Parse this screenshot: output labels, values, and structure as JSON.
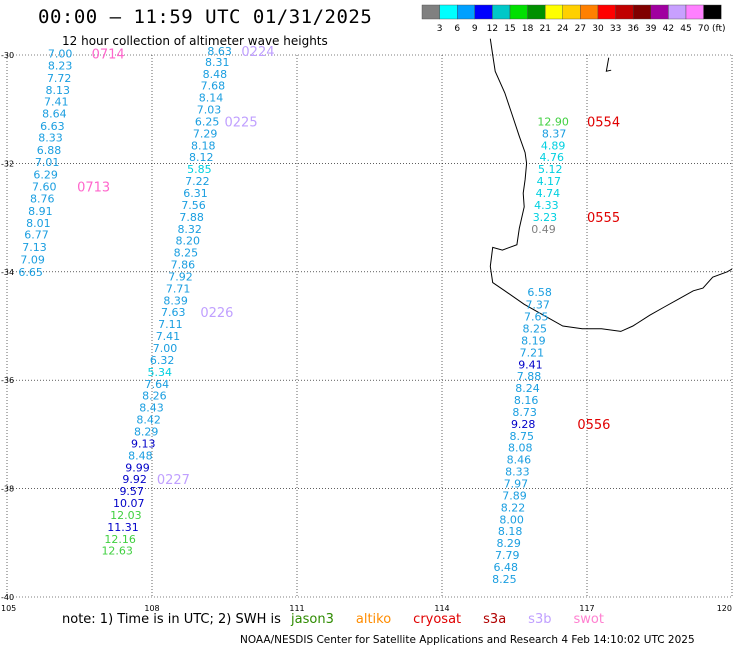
{
  "header": {
    "title": "00:00 – 11:59 UTC 01/31/2025",
    "subtitle": "12 hour collection of altimeter wave heights"
  },
  "colorbar": {
    "unit_label": "(ft)",
    "swatches": [
      {
        "color": "#808080",
        "label": "3"
      },
      {
        "color": "#00ffff",
        "label": "6"
      },
      {
        "color": "#00a0ff",
        "label": "9"
      },
      {
        "color": "#0000ff",
        "label": "12"
      },
      {
        "color": "#00c8c8",
        "label": "15"
      },
      {
        "color": "#00e000",
        "label": "18"
      },
      {
        "color": "#009000",
        "label": "21"
      },
      {
        "color": "#ffff00",
        "label": "24"
      },
      {
        "color": "#ffd000",
        "label": "27"
      },
      {
        "color": "#ff8000",
        "label": "30"
      },
      {
        "color": "#ff0000",
        "label": "33"
      },
      {
        "color": "#c00000",
        "label": "36"
      },
      {
        "color": "#800000",
        "label": "39"
      },
      {
        "color": "#a000a0",
        "label": "42"
      },
      {
        "color": "#c8a0ff",
        "label": "45"
      },
      {
        "color": "#ff80ff",
        "label": "70"
      },
      {
        "color": "#000000",
        "label": ""
      }
    ]
  },
  "map": {
    "lon_ticks": [
      105,
      108,
      111,
      114,
      117,
      120
    ],
    "lat_ticks": [
      -30,
      -32,
      -34,
      -36,
      -38,
      -40
    ],
    "lat_labels": [
      "-30",
      "-32",
      "-34",
      "-36",
      "-38",
      "-40"
    ],
    "lon_labels": [
      "105",
      "108",
      "111",
      "114",
      "117",
      "120"
    ]
  },
  "tracks": [
    {
      "label": "0714",
      "label_color": "#ff66cc",
      "points": [
        {
          "lon": 106.1,
          "lat": -30.05,
          "value": "7.00"
        },
        {
          "lon": 106.1,
          "lat": -30.27,
          "value": "8.23"
        },
        {
          "lon": 106.08,
          "lat": -30.5,
          "value": "7.72"
        },
        {
          "lon": 106.05,
          "lat": -30.72,
          "value": "8.13"
        },
        {
          "lon": 106.02,
          "lat": -30.93,
          "value": "7.41"
        },
        {
          "lon": 105.98,
          "lat": -31.15,
          "value": "8.64"
        },
        {
          "lon": 105.94,
          "lat": -31.38,
          "value": "6.63"
        },
        {
          "lon": 105.9,
          "lat": -31.6,
          "value": "8.33"
        },
        {
          "lon": 105.87,
          "lat": -31.83,
          "value": "6.88"
        },
        {
          "lon": 105.83,
          "lat": -32.05,
          "value": "7.01"
        },
        {
          "lon": 105.8,
          "lat": -32.28,
          "value": "6.29"
        },
        {
          "lon": 105.77,
          "lat": -32.5,
          "value": "7.60"
        },
        {
          "lon": 105.73,
          "lat": -32.72,
          "value": "8.76"
        },
        {
          "lon": 105.69,
          "lat": -32.95,
          "value": "8.91"
        },
        {
          "lon": 105.65,
          "lat": -33.17,
          "value": "8.01"
        },
        {
          "lon": 105.61,
          "lat": -33.39,
          "value": "6.77"
        },
        {
          "lon": 105.57,
          "lat": -33.62,
          "value": "7.13"
        },
        {
          "lon": 105.53,
          "lat": -33.85,
          "value": "7.09"
        },
        {
          "lon": 105.49,
          "lat": -34.08,
          "value": "6.65"
        }
      ],
      "time_labels": [
        {
          "text": "0714",
          "lon": 106.75,
          "lat": -30.05
        },
        {
          "text": "0713",
          "lon": 106.45,
          "lat": -32.5
        }
      ]
    },
    {
      "label": "0224",
      "points": [
        {
          "lon": 109.4,
          "lat": -30.0,
          "value": "8.63"
        },
        {
          "lon": 109.35,
          "lat": -30.2,
          "value": "8.31"
        },
        {
          "lon": 109.3,
          "lat": -30.42,
          "value": "8.48"
        },
        {
          "lon": 109.26,
          "lat": -30.64,
          "value": "7.68"
        },
        {
          "lon": 109.22,
          "lat": -30.86,
          "value": "8.14"
        },
        {
          "lon": 109.18,
          "lat": -31.08,
          "value": "7.03"
        },
        {
          "lon": 109.14,
          "lat": -31.3,
          "value": "6.25"
        },
        {
          "lon": 109.1,
          "lat": -31.52,
          "value": "7.29"
        },
        {
          "lon": 109.06,
          "lat": -31.74,
          "value": "8.18"
        },
        {
          "lon": 109.02,
          "lat": -31.96,
          "value": "8.12"
        },
        {
          "lon": 108.98,
          "lat": -32.18,
          "value": "5.85"
        },
        {
          "lon": 108.94,
          "lat": -32.4,
          "value": "7.22"
        },
        {
          "lon": 108.9,
          "lat": -32.62,
          "value": "6.31"
        },
        {
          "lon": 108.86,
          "lat": -32.84,
          "value": "7.56"
        },
        {
          "lon": 108.82,
          "lat": -33.06,
          "value": "7.88"
        },
        {
          "lon": 108.78,
          "lat": -33.28,
          "value": "8.32"
        },
        {
          "lon": 108.74,
          "lat": -33.5,
          "value": "8.20"
        },
        {
          "lon": 108.7,
          "lat": -33.72,
          "value": "8.25"
        },
        {
          "lon": 108.64,
          "lat": -33.94,
          "value": "7.86"
        },
        {
          "lon": 108.59,
          "lat": -34.16,
          "value": "7.92"
        },
        {
          "lon": 108.54,
          "lat": -34.38,
          "value": "7.71"
        },
        {
          "lon": 108.49,
          "lat": -34.6,
          "value": "8.39"
        },
        {
          "lon": 108.44,
          "lat": -34.82,
          "value": "7.63"
        },
        {
          "lon": 108.38,
          "lat": -35.04,
          "value": "7.11"
        },
        {
          "lon": 108.33,
          "lat": -35.26,
          "value": "7.41"
        },
        {
          "lon": 108.27,
          "lat": -35.48,
          "value": "7.00"
        },
        {
          "lon": 108.21,
          "lat": -35.7,
          "value": "6.32"
        },
        {
          "lon": 108.16,
          "lat": -35.92,
          "value": "5.34"
        },
        {
          "lon": 108.1,
          "lat": -36.14,
          "value": "7.64"
        },
        {
          "lon": 108.05,
          "lat": -36.36,
          "value": "8.26"
        },
        {
          "lon": 107.99,
          "lat": -36.58,
          "value": "8.43"
        },
        {
          "lon": 107.93,
          "lat": -36.8,
          "value": "8.42"
        },
        {
          "lon": 107.88,
          "lat": -37.02,
          "value": "8.29"
        },
        {
          "lon": 107.82,
          "lat": -37.24,
          "value": "9.13"
        },
        {
          "lon": 107.76,
          "lat": -37.46,
          "value": "8.48"
        },
        {
          "lon": 107.7,
          "lat": -37.68,
          "value": "9.99"
        },
        {
          "lon": 107.64,
          "lat": -37.9,
          "value": "9.92"
        },
        {
          "lon": 107.58,
          "lat": -38.12,
          "value": "9.57"
        },
        {
          "lon": 107.52,
          "lat": -38.34,
          "value": "10.07"
        },
        {
          "lon": 107.46,
          "lat": -38.56,
          "value": "12.03"
        },
        {
          "lon": 107.4,
          "lat": -38.78,
          "value": "11.31"
        },
        {
          "lon": 107.34,
          "lat": -39.0,
          "value": "12.16"
        },
        {
          "lon": 107.28,
          "lat": -39.22,
          "value": "12.63"
        }
      ],
      "time_labels": [
        {
          "text": "0224",
          "lon": 109.85,
          "lat": -30.0
        },
        {
          "text": "0225",
          "lon": 109.5,
          "lat": -31.3
        },
        {
          "text": "0226",
          "lon": 109.0,
          "lat": -34.82
        },
        {
          "text": "0227",
          "lon": 108.1,
          "lat": -37.9
        }
      ]
    },
    {
      "label": "0554",
      "points": [
        {
          "lon": 116.3,
          "lat": -31.3,
          "value": "12.90"
        },
        {
          "lon": 116.32,
          "lat": -31.52,
          "value": "8.37"
        },
        {
          "lon": 116.3,
          "lat": -31.74,
          "value": "4.89"
        },
        {
          "lon": 116.27,
          "lat": -31.96,
          "value": "4.76"
        },
        {
          "lon": 116.24,
          "lat": -32.18,
          "value": "5.12"
        },
        {
          "lon": 116.21,
          "lat": -32.4,
          "value": "4.17"
        },
        {
          "lon": 116.19,
          "lat": -32.62,
          "value": "4.74"
        },
        {
          "lon": 116.16,
          "lat": -32.84,
          "value": "4.33"
        },
        {
          "lon": 116.13,
          "lat": -33.06,
          "value": "3.23"
        },
        {
          "lon": 116.1,
          "lat": -33.28,
          "value": "0.49"
        },
        {
          "lon": 116.02,
          "lat": -34.45,
          "value": "6.58"
        },
        {
          "lon": 115.98,
          "lat": -34.68,
          "value": "7.37"
        },
        {
          "lon": 115.95,
          "lat": -34.9,
          "value": "7.65"
        },
        {
          "lon": 115.92,
          "lat": -35.12,
          "value": "8.25"
        },
        {
          "lon": 115.89,
          "lat": -35.34,
          "value": "8.19"
        },
        {
          "lon": 115.86,
          "lat": -35.56,
          "value": "7.21"
        },
        {
          "lon": 115.83,
          "lat": -35.78,
          "value": "9.41"
        },
        {
          "lon": 115.8,
          "lat": -36.0,
          "value": "7.88"
        },
        {
          "lon": 115.77,
          "lat": -36.22,
          "value": "8.24"
        },
        {
          "lon": 115.74,
          "lat": -36.44,
          "value": "8.16"
        },
        {
          "lon": 115.71,
          "lat": -36.66,
          "value": "8.73"
        },
        {
          "lon": 115.68,
          "lat": -36.88,
          "value": "9.28"
        },
        {
          "lon": 115.65,
          "lat": -37.1,
          "value": "8.75"
        },
        {
          "lon": 115.62,
          "lat": -37.32,
          "value": "8.08"
        },
        {
          "lon": 115.59,
          "lat": -37.54,
          "value": "8.46"
        },
        {
          "lon": 115.56,
          "lat": -37.76,
          "value": "8.33"
        },
        {
          "lon": 115.53,
          "lat": -37.98,
          "value": "7.97"
        },
        {
          "lon": 115.5,
          "lat": -38.2,
          "value": "7.89"
        },
        {
          "lon": 115.47,
          "lat": -38.42,
          "value": "8.22"
        },
        {
          "lon": 115.44,
          "lat": -38.64,
          "value": "8.00"
        },
        {
          "lon": 115.41,
          "lat": -38.86,
          "value": "8.18"
        },
        {
          "lon": 115.38,
          "lat": -39.08,
          "value": "8.29"
        },
        {
          "lon": 115.35,
          "lat": -39.3,
          "value": "7.79"
        },
        {
          "lon": 115.32,
          "lat": -39.52,
          "value": "6.48"
        },
        {
          "lon": 115.29,
          "lat": -39.74,
          "value": "8.25"
        }
      ],
      "time_labels": [
        {
          "text": "0554",
          "lon": 117.0,
          "lat": -31.3
        },
        {
          "text": "0555",
          "lon": 117.0,
          "lat": -33.06
        },
        {
          "text": "0556",
          "lon": 116.8,
          "lat": -36.88
        }
      ]
    }
  ],
  "footer": {
    "note_prefix": "note: 1) Time is in UTC; 2) SWH is",
    "satellites": [
      {
        "name": "jason3",
        "color": "#2e8b00"
      },
      {
        "name": "altiko",
        "color": "#ff8c00"
      },
      {
        "name": "cryosat",
        "color": "#e00000"
      },
      {
        "name": "s3a",
        "color": "#b00000"
      },
      {
        "name": "s3b",
        "color": "#c0a0ff"
      },
      {
        "name": "swot",
        "color": "#ff80d0"
      }
    ],
    "credit": "NOAA/NESDIS Center for Satellite Applications and Research     4 Feb 14:10:02 UTC 2025"
  }
}
